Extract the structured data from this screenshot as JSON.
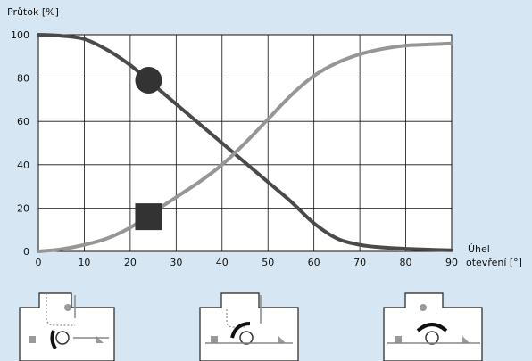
{
  "chart_data": {
    "type": "line",
    "ylabel": "Průtok [%]",
    "xlabel_line1": "Úhel",
    "xlabel_line2": "otevření [°]",
    "xlim": [
      0,
      90
    ],
    "ylim": [
      0,
      100
    ],
    "xticks": [
      0,
      10,
      20,
      30,
      40,
      50,
      60,
      70,
      80,
      90
    ],
    "yticks": [
      0,
      20,
      40,
      60,
      80,
      100
    ],
    "grid": true,
    "series": [
      {
        "color": "#4a4a4a",
        "marker": "circle",
        "marker_at": [
          24,
          79
        ],
        "points": [
          [
            0,
            100
          ],
          [
            5,
            99.5
          ],
          [
            10,
            98
          ],
          [
            15,
            93
          ],
          [
            20,
            86
          ],
          [
            25,
            77
          ],
          [
            30,
            68
          ],
          [
            35,
            59
          ],
          [
            40,
            50
          ],
          [
            45,
            41
          ],
          [
            50,
            32
          ],
          [
            55,
            23
          ],
          [
            60,
            13
          ],
          [
            65,
            6
          ],
          [
            70,
            3
          ],
          [
            75,
            1.8
          ],
          [
            80,
            1.2
          ],
          [
            85,
            0.8
          ],
          [
            90,
            0.5
          ]
        ]
      },
      {
        "color": "#969696",
        "marker": "square",
        "marker_at": [
          24,
          16
        ],
        "points": [
          [
            0,
            0
          ],
          [
            5,
            1
          ],
          [
            10,
            3
          ],
          [
            15,
            6
          ],
          [
            20,
            11
          ],
          [
            25,
            18
          ],
          [
            30,
            25
          ],
          [
            35,
            32
          ],
          [
            40,
            40
          ],
          [
            45,
            50
          ],
          [
            50,
            61
          ],
          [
            55,
            72
          ],
          [
            60,
            81
          ],
          [
            65,
            87
          ],
          [
            70,
            91
          ],
          [
            75,
            93.5
          ],
          [
            80,
            95
          ],
          [
            85,
            95.5
          ],
          [
            90,
            96
          ]
        ]
      }
    ]
  }
}
